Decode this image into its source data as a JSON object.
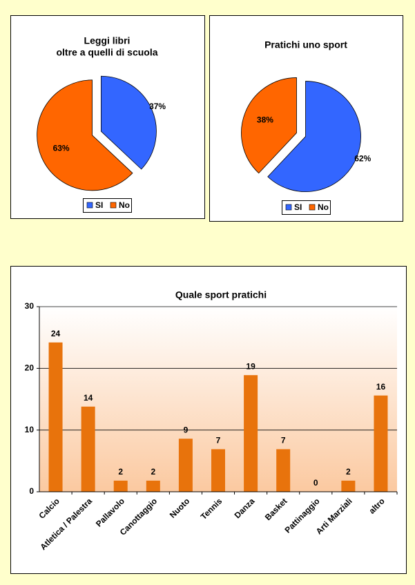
{
  "chart_data": [
    {
      "type": "pie",
      "title": [
        "Leggi libri",
        "oltre a quelli di scuola"
      ],
      "categories": [
        "SI",
        "No"
      ],
      "values": [
        37,
        63
      ],
      "value_labels": [
        "37%",
        "63%"
      ],
      "colors": [
        "#3366ff",
        "#ff6600"
      ],
      "legend": "bottom"
    },
    {
      "type": "pie",
      "title": [
        "Pratichi uno sport"
      ],
      "categories": [
        "SI",
        "No"
      ],
      "values": [
        62,
        38
      ],
      "value_labels": [
        "62%",
        "38%"
      ],
      "colors": [
        "#3366ff",
        "#ff6600"
      ],
      "legend": "bottom"
    },
    {
      "type": "bar",
      "title": [
        "Quale sport pratichi"
      ],
      "categories": [
        "Calcio",
        "Atletica / Palestra",
        "Pallavolo",
        "Canottaggio",
        "Nuoto",
        "Tennis",
        "Danza",
        "Basket",
        "Pattinaggio",
        "Arti Marziali",
        "altro"
      ],
      "values": [
        24.2,
        13.8,
        1.8,
        1.8,
        8.6,
        6.9,
        18.9,
        6.9,
        0,
        1.8,
        15.6
      ],
      "value_labels": [
        "24",
        "14",
        "2",
        "2",
        "9",
        "7",
        "19",
        "7",
        "0",
        "2",
        "16"
      ],
      "color": "#e8730c",
      "ylim": [
        0,
        30
      ],
      "yticks": [
        0,
        10,
        20,
        30
      ],
      "grid": true
    }
  ]
}
